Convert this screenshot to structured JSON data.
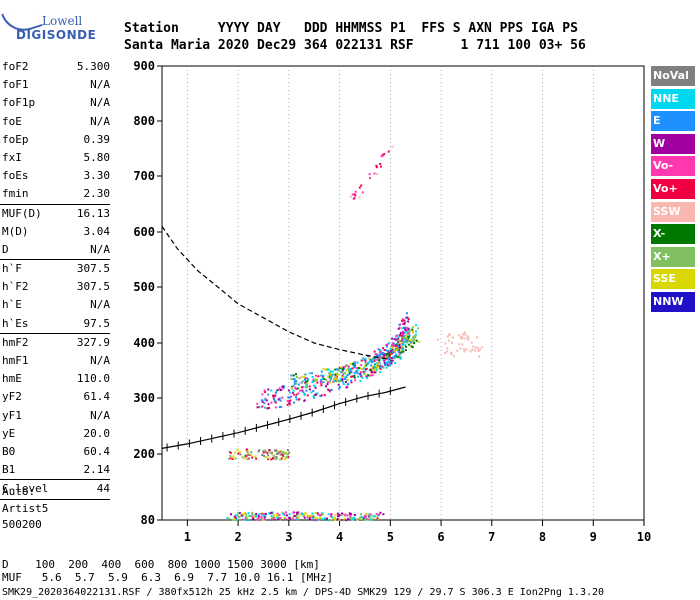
{
  "logo": {
    "line1": "Lowell",
    "line2": "DIGISONDE"
  },
  "header": {
    "row1": "Station     YYYY DAY   DDD HHMMSS P1  FFS S AXN PPS IGA PS",
    "row2": "Santa Maria 2020 Dec29 364 022131 RSF      1 711 100 03+ 56"
  },
  "params": [
    {
      "name": "foF2",
      "value": "5.300"
    },
    {
      "name": "foF1",
      "value": "N/A"
    },
    {
      "name": "foF1p",
      "value": "N/A"
    },
    {
      "name": "foE",
      "value": "N/A"
    },
    {
      "name": "foEp",
      "value": "0.39"
    },
    {
      "name": "fxI",
      "value": "5.80"
    },
    {
      "name": "foEs",
      "value": "3.30"
    },
    {
      "name": "fmin",
      "value": "2.30"
    },
    {
      "sep": true
    },
    {
      "name": "MUF(D)",
      "value": "16.13"
    },
    {
      "name": "M(D)",
      "value": "3.04"
    },
    {
      "name": "D",
      "value": "N/A"
    },
    {
      "sep": true
    },
    {
      "name": "h`F",
      "value": "307.5"
    },
    {
      "name": "h`F2",
      "value": "307.5"
    },
    {
      "name": "h`E",
      "value": "N/A"
    },
    {
      "name": "h`Es",
      "value": "97.5"
    },
    {
      "sep": true
    },
    {
      "name": "hmF2",
      "value": "327.9"
    },
    {
      "name": "hmF1",
      "value": "N/A"
    },
    {
      "name": "hmE",
      "value": "110.0"
    },
    {
      "name": "yF2",
      "value": "61.4"
    },
    {
      "name": "yF1",
      "value": "N/A"
    },
    {
      "name": "yE",
      "value": "20.0"
    },
    {
      "name": "B0",
      "value": "60.4"
    },
    {
      "name": "B1",
      "value": "2.14"
    },
    {
      "sep": true
    },
    {
      "name": "C-level",
      "value": "44"
    },
    {
      "sep": true
    }
  ],
  "auto": {
    "line1": "Auto:",
    "line2": "Artist5",
    "line3": "500200"
  },
  "legend": [
    {
      "label": "NoVal",
      "color": "#808080"
    },
    {
      "label": "NNE",
      "color": "#00d8f0"
    },
    {
      "label": "E",
      "color": "#1e90ff"
    },
    {
      "label": "W",
      "color": "#a000a0"
    },
    {
      "label": "Vo-",
      "color": "#ff38b0"
    },
    {
      "label": "Vo+",
      "color": "#f00040"
    },
    {
      "label": "SSW",
      "color": "#f8b8b0"
    },
    {
      "label": "X-",
      "color": "#007800"
    },
    {
      "label": "X+",
      "color": "#80c060"
    },
    {
      "label": "SSE",
      "color": "#d8d800"
    },
    {
      "label": "NNW",
      "color": "#2010c8"
    }
  ],
  "muf_table": {
    "row1": "D    100  200  400  600  800 1000 1500 3000 [km]",
    "row2": "MUF   5.6  5.7  5.9  6.3  6.9  7.7 10.0 16.1 [MHz]"
  },
  "footer": "SMK29_2020364022131.RSF / 380fx512h 25 kHz 2.5 km / DPS-4D SMK29 129 / 29.7 S 306.3 E Ion2Png 1.3.20",
  "chart_data": {
    "type": "scatter",
    "title": "",
    "xlabel": "",
    "ylabel": "",
    "xlim": [
      0.5,
      10
    ],
    "ylim": [
      80,
      900
    ],
    "y_scale": "custom (80, 200, 300, ... 900 tick spacing)",
    "x_ticks": [
      1,
      2,
      3,
      4,
      5,
      6,
      7,
      8,
      9,
      10
    ],
    "y_ticks": [
      80,
      200,
      300,
      400,
      500,
      600,
      700,
      800,
      900
    ],
    "grid": "dotted vertical at integer frequencies",
    "series": [
      {
        "kind": "ordinary_trace",
        "x": [
          2.4,
          2.8,
          3.2,
          3.6,
          4.0,
          4.4,
          4.7,
          4.9,
          5.05,
          5.2,
          5.3
        ],
        "y": [
          300,
          305,
          315,
          325,
          338,
          352,
          365,
          378,
          390,
          410,
          440
        ]
      },
      {
        "kind": "extraordinary_trace",
        "x": [
          3.0,
          3.4,
          3.8,
          4.2,
          4.6,
          4.9,
          5.1,
          5.3,
          5.5
        ],
        "y": [
          330,
          335,
          342,
          350,
          360,
          372,
          385,
          405,
          420
        ]
      },
      {
        "kind": "es_layer_trace",
        "x": [
          1.8,
          2.4,
          3.0,
          3.6,
          4.2,
          4.8
        ],
        "y": [
          88,
          88,
          89,
          88,
          88,
          88
        ]
      },
      {
        "kind": "es_multiple_trace",
        "x": [
          1.8,
          2.4,
          3.0
        ],
        "y": [
          200,
          202,
          200
        ]
      },
      {
        "kind": "sporadic_high",
        "x": [
          4.2,
          4.4,
          4.6,
          4.8,
          5.0
        ],
        "y": [
          660,
          680,
          700,
          730,
          760
        ]
      },
      {
        "kind": "ssw_cluster",
        "x": [
          6.1,
          6.3,
          6.5,
          6.7
        ],
        "y": [
          390,
          400,
          410,
          395
        ]
      }
    ],
    "profile_line": {
      "kind": "electron_density_profile",
      "x": [
        0.5,
        1.0,
        1.5,
        2.0,
        2.5,
        3.0,
        3.5,
        4.0,
        4.5,
        4.9,
        5.3
      ],
      "y": [
        210,
        218,
        228,
        238,
        250,
        262,
        275,
        290,
        303,
        310,
        320
      ]
    },
    "dashed_curve": {
      "kind": "model_curve",
      "x": [
        0.5,
        0.8,
        1.2,
        1.6,
        2.0,
        2.5,
        3.0,
        3.5,
        4.0,
        4.5,
        5.0
      ],
      "y": [
        610,
        570,
        530,
        500,
        470,
        445,
        420,
        400,
        388,
        378,
        370
      ]
    }
  }
}
